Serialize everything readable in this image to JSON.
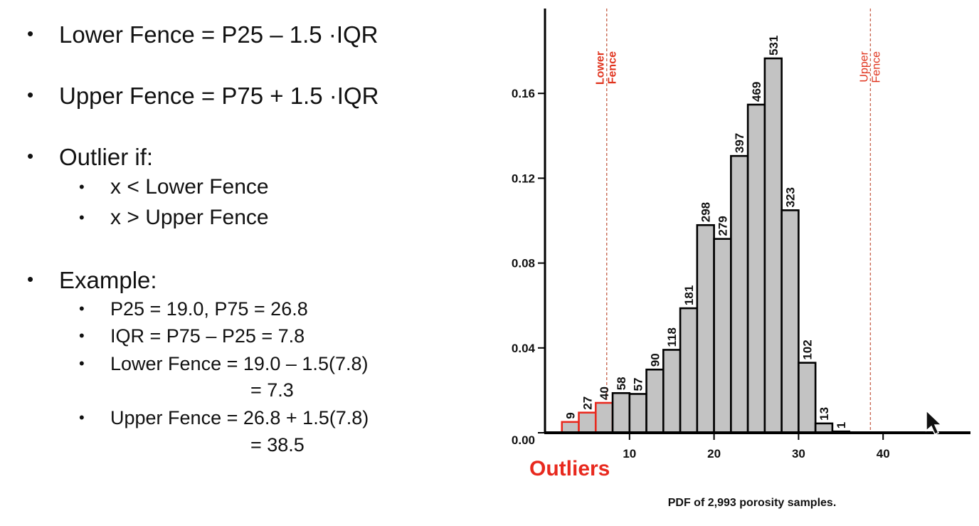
{
  "slide": {
    "bullets": [
      {
        "text": "Lower Fence = P25 – 1.5 ·IQR"
      },
      {
        "text": "Upper Fence = P75 + 1.5 ·IQR"
      },
      {
        "text": "Outlier if:"
      },
      {
        "text": "x < Lower Fence"
      },
      {
        "text": "x > Upper Fence"
      },
      {
        "text": "Example:"
      },
      {
        "text": "P25 = 19.0, P75 = 26.8"
      },
      {
        "text": "IQR = P75 – P25 = 7.8"
      },
      {
        "text": "Lower Fence = 19.0 – 1.5(7.8)"
      },
      {
        "text": "= 7.3"
      },
      {
        "text": "Upper Fence = 26.8 + 1.5(7.8)"
      },
      {
        "text": "= 38.5"
      }
    ],
    "bullet_glyph": "•"
  },
  "chart_data": {
    "type": "bar",
    "caption": "PDF of 2,993 porosity samples.",
    "xlim": [
      0,
      50
    ],
    "ylim": [
      0,
      0.2
    ],
    "xticks": [
      10,
      20,
      30,
      40
    ],
    "yticks": [
      0.0,
      0.04,
      0.08,
      0.12,
      0.16
    ],
    "ytick_labels": [
      "0.00",
      "0.04",
      "0.08",
      "0.12",
      "0.16"
    ],
    "bin_width": 2,
    "bins": [
      {
        "x0": 2,
        "x1": 4,
        "count": 9,
        "density": 0.0051,
        "outlier": true
      },
      {
        "x0": 4,
        "x1": 6,
        "count": 27,
        "density": 0.0095,
        "outlier": true
      },
      {
        "x0": 6,
        "x1": 8,
        "count": 40,
        "density": 0.0141,
        "outlier": true
      },
      {
        "x0": 8,
        "x1": 10,
        "count": 58,
        "density": 0.0187,
        "outlier": false
      },
      {
        "x0": 10,
        "x1": 12,
        "count": 57,
        "density": 0.0183,
        "outlier": false
      },
      {
        "x0": 12,
        "x1": 14,
        "count": 90,
        "density": 0.0298,
        "outlier": false
      },
      {
        "x0": 14,
        "x1": 16,
        "count": 118,
        "density": 0.0391,
        "outlier": false
      },
      {
        "x0": 16,
        "x1": 18,
        "count": 181,
        "density": 0.0587,
        "outlier": false
      },
      {
        "x0": 18,
        "x1": 20,
        "count": 298,
        "density": 0.0979,
        "outlier": false
      },
      {
        "x0": 20,
        "x1": 22,
        "count": 279,
        "density": 0.0914,
        "outlier": false
      },
      {
        "x0": 22,
        "x1": 24,
        "count": 397,
        "density": 0.1305,
        "outlier": false
      },
      {
        "x0": 24,
        "x1": 26,
        "count": 469,
        "density": 0.1547,
        "outlier": false
      },
      {
        "x0": 26,
        "x1": 28,
        "count": 531,
        "density": 0.1765,
        "outlier": false
      },
      {
        "x0": 28,
        "x1": 30,
        "count": 323,
        "density": 0.1049,
        "outlier": false
      },
      {
        "x0": 30,
        "x1": 32,
        "count": 102,
        "density": 0.033,
        "outlier": false
      },
      {
        "x0": 32,
        "x1": 34,
        "count": 13,
        "density": 0.0044,
        "outlier": false
      },
      {
        "x0": 34,
        "x1": 36,
        "count": 1,
        "density": 0.0006,
        "outlier": false
      }
    ],
    "fences": [
      {
        "x": 7.3,
        "label_lines": [
          "Lower",
          "Fence"
        ]
      },
      {
        "x": 38.5,
        "label_lines": [
          "Upper",
          "Fence"
        ]
      }
    ],
    "outliers_label": "Outliers",
    "colors": {
      "bar_fill": "#c3c3c3",
      "bar_stroke": "#000000",
      "outlier_stroke": "#e8291e",
      "fence_line": "#c96a55",
      "fence_text": "#e0331d",
      "outliers_text": "#e8291e"
    }
  },
  "cursor": {
    "icon": "mouse-pointer-icon"
  }
}
